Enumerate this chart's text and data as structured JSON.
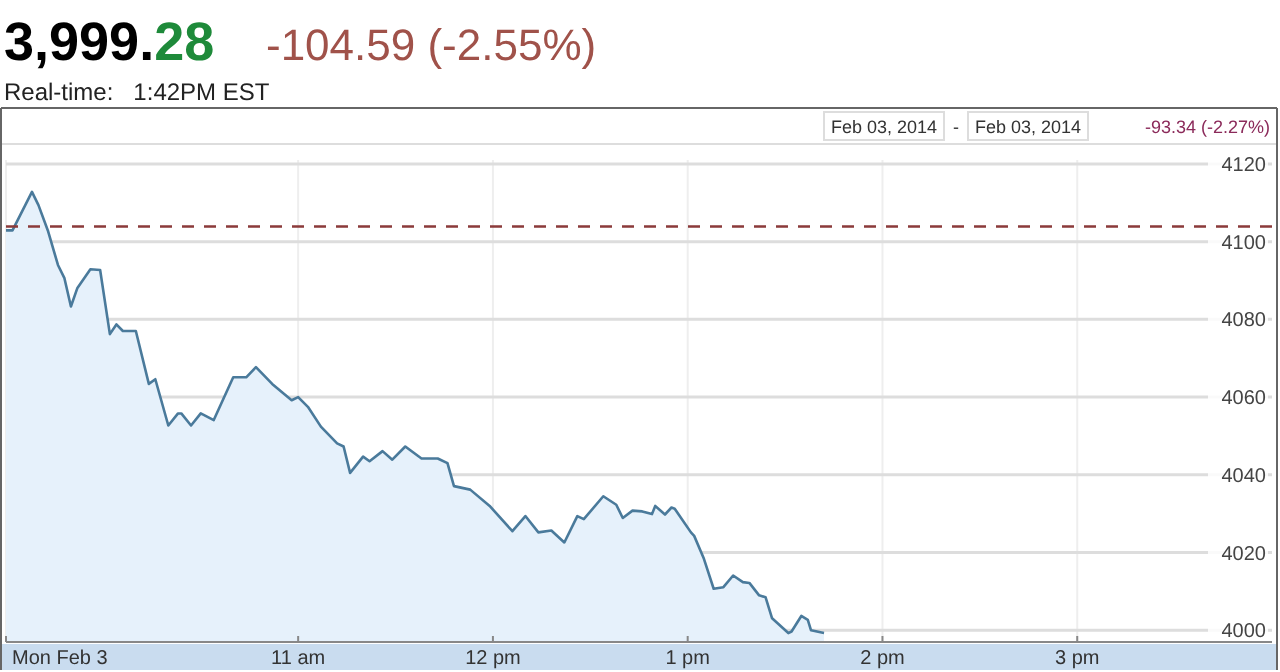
{
  "chart_data": {
    "type": "area",
    "title": "3,999.28",
    "subtitle": "-104.59 (-2.55%)",
    "annotations": [
      "Real-time:   1:42PM EST",
      "Feb 03, 2014",
      "-",
      "Feb 03, 2014",
      "-93.34 (-2.27%)"
    ],
    "series": [
      {
        "color": "#4a7a9b",
        "x": [
          "2014-02-03T09:30",
          "2014-02-03T09:32",
          "2014-02-03T09:38",
          "2014-02-03T09:40",
          "2014-02-03T09:43",
          "2014-02-03T09:46",
          "2014-02-03T09:48",
          "2014-02-03T09:50",
          "2014-02-03T09:52",
          "2014-02-03T09:56",
          "2014-02-03T09:59",
          "2014-02-03T10:02",
          "2014-02-03T10:04",
          "2014-02-03T10:06",
          "2014-02-03T10:10",
          "2014-02-03T10:14",
          "2014-02-03T10:16",
          "2014-02-03T10:20",
          "2014-02-03T10:23",
          "2014-02-03T10:24",
          "2014-02-03T10:27",
          "2014-02-03T10:30",
          "2014-02-03T10:34",
          "2014-02-03T10:40",
          "2014-02-03T10:44",
          "2014-02-03T10:47",
          "2014-02-03T10:52",
          "2014-02-03T10:58",
          "2014-02-03T11:00",
          "2014-02-03T11:03",
          "2014-02-03T11:07",
          "2014-02-03T11:12",
          "2014-02-03T11:14",
          "2014-02-03T11:16",
          "2014-02-03T11:20",
          "2014-02-03T11:22",
          "2014-02-03T11:26",
          "2014-02-03T11:29",
          "2014-02-03T11:33",
          "2014-02-03T11:38",
          "2014-02-03T11:43",
          "2014-02-03T11:46",
          "2014-02-03T11:48",
          "2014-02-03T11:53",
          "2014-02-03T11:59",
          "2014-02-03T12:06",
          "2014-02-03T12:10",
          "2014-02-03T12:14",
          "2014-02-03T12:18",
          "2014-02-03T12:22",
          "2014-02-03T12:26",
          "2014-02-03T12:28",
          "2014-02-03T12:34",
          "2014-02-03T12:38",
          "2014-02-03T12:40",
          "2014-02-03T12:43",
          "2014-02-03T12:46",
          "2014-02-03T12:49",
          "2014-02-03T12:50",
          "2014-02-03T12:53",
          "2014-02-03T12:55",
          "2014-02-03T12:56",
          "2014-02-03T13:01",
          "2014-02-03T13:02",
          "2014-02-03T13:05",
          "2014-02-03T13:08",
          "2014-02-03T13:11",
          "2014-02-03T13:14",
          "2014-02-03T13:17",
          "2014-02-03T13:19",
          "2014-02-03T13:22",
          "2014-02-03T13:24",
          "2014-02-03T13:26",
          "2014-02-03T13:31",
          "2014-02-03T13:32",
          "2014-02-03T13:35",
          "2014-02-03T13:37",
          "2014-02-03T13:38",
          "2014-02-03T13:42"
        ],
        "values": [
          4102.9,
          4102.9,
          4112.8,
          4109.4,
          4102.6,
          4094.0,
          4090.6,
          4083.3,
          4088.1,
          4092.9,
          4092.7,
          4076.2,
          4078.7,
          4077.0,
          4077.0,
          4063.4,
          4064.6,
          4052.7,
          4055.8,
          4055.8,
          4052.7,
          4055.8,
          4054.1,
          4065.1,
          4065.1,
          4067.7,
          4063.4,
          4059.2,
          4060.0,
          4057.5,
          4052.4,
          4048.1,
          4047.3,
          4040.5,
          4044.7,
          4043.5,
          4046.1,
          4043.9,
          4047.3,
          4044.2,
          4044.2,
          4043.0,
          4037.1,
          4036.2,
          4032.0,
          4025.5,
          4029.4,
          4025.2,
          4025.7,
          4022.6,
          4029.4,
          4028.6,
          4034.5,
          4032.3,
          4028.9,
          4030.8,
          4030.6,
          4029.9,
          4032.0,
          4029.8,
          4031.6,
          4031.3,
          4025.2,
          4024.3,
          4018.4,
          4010.7,
          4011.1,
          4014.1,
          4012.4,
          4012.2,
          4009.0,
          4008.5,
          4003.1,
          3999.3,
          3999.7,
          4003.7,
          4002.7,
          4000.0,
          3999.3
        ]
      }
    ],
    "xlim": [
      "2014-02-03T09:30",
      "2014-02-03T16:00"
    ],
    "xticks": [
      {
        "value": "2014-02-03T09:30",
        "label": "Mon Feb 3"
      },
      {
        "value": "2014-02-03T11:00",
        "label": "11 am"
      },
      {
        "value": "2014-02-03T12:00",
        "label": "12 pm"
      },
      {
        "value": "2014-02-03T13:00",
        "label": "1 pm"
      },
      {
        "value": "2014-02-03T14:00",
        "label": "2 pm"
      },
      {
        "value": "2014-02-03T15:00",
        "label": "3 pm"
      }
    ],
    "ylim": [
      3997,
      4121
    ],
    "yticks": [
      4000,
      4020,
      4040,
      4060,
      4080,
      4100,
      4120
    ],
    "grid": true,
    "line_style": "solid",
    "marker": "none",
    "ref_lines": [
      {
        "axis": "y",
        "value": 4103.9,
        "color": "#8b3a3a",
        "line_style": "dashed"
      }
    ]
  }
}
